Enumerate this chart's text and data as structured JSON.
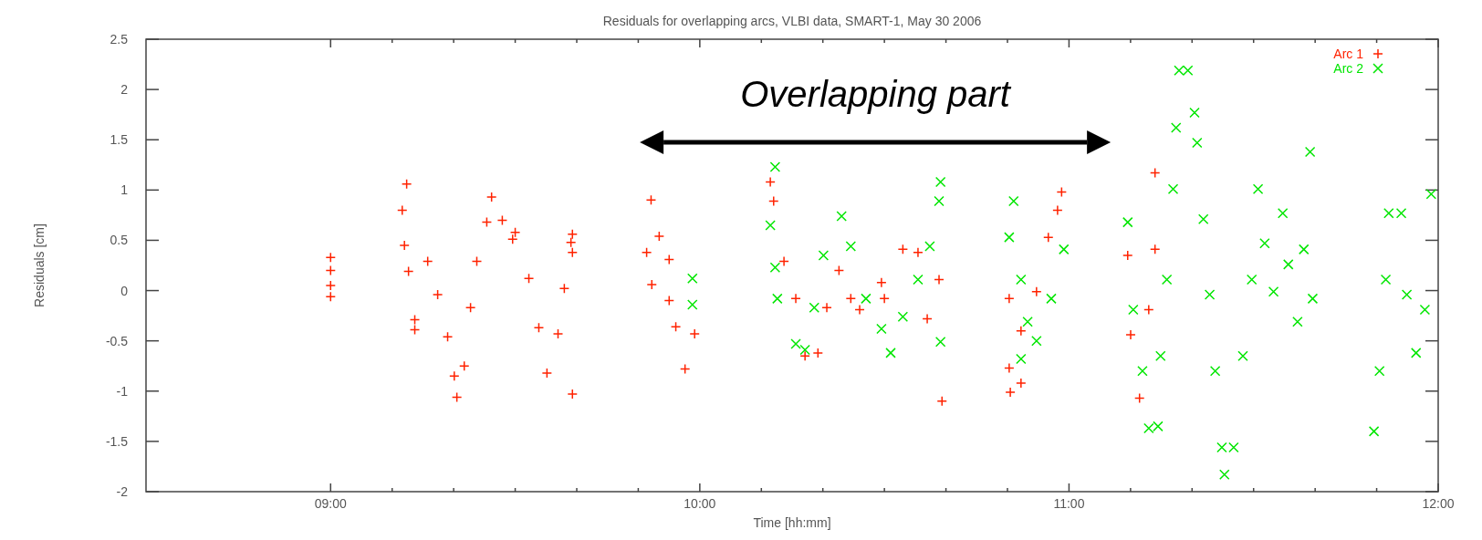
{
  "chart_data": {
    "type": "scatter",
    "title": "Residuals for overlapping arcs, VLBI data, SMART-1, May 30 2006",
    "xlabel": "Time [hh:mm]",
    "ylabel": "Residuals [cm]",
    "xlim": [
      8.5,
      12
    ],
    "ylim": [
      -2,
      2.5
    ],
    "xticks": [
      {
        "value": 9,
        "label": "09:00"
      },
      {
        "value": 9.1667,
        "label": null
      },
      {
        "value": 9.3333,
        "label": null
      },
      {
        "value": 9.5,
        "label": null
      },
      {
        "value": 9.6667,
        "label": null
      },
      {
        "value": 9.8333,
        "label": null
      },
      {
        "value": 10,
        "label": "10:00"
      },
      {
        "value": 10.1667,
        "label": null
      },
      {
        "value": 10.3333,
        "label": null
      },
      {
        "value": 10.5,
        "label": null
      },
      {
        "value": 10.6667,
        "label": null
      },
      {
        "value": 10.8333,
        "label": null
      },
      {
        "value": 11,
        "label": "11:00"
      },
      {
        "value": 11.1667,
        "label": null
      },
      {
        "value": 11.3333,
        "label": null
      },
      {
        "value": 11.5,
        "label": null
      },
      {
        "value": 11.6667,
        "label": null
      },
      {
        "value": 11.8333,
        "label": null
      },
      {
        "value": 12,
        "label": "12:00"
      }
    ],
    "yticks": [
      -2,
      -1.5,
      -1,
      -0.5,
      0,
      0.5,
      1,
      1.5,
      2,
      2.5
    ],
    "grid": false,
    "legend": "top right",
    "marker": "cross",
    "annotations": [
      "Overlapping part"
    ],
    "series": [
      {
        "name": "Arc 1",
        "color": "#ff2200",
        "x": [
          9.0,
          9.0,
          9.0,
          9.0,
          9.194,
          9.2,
          9.206,
          9.211,
          9.228,
          9.228,
          9.263,
          9.29,
          9.317,
          9.335,
          9.342,
          9.362,
          9.379,
          9.396,
          9.423,
          9.436,
          9.465,
          9.493,
          9.5,
          9.537,
          9.564,
          9.586,
          9.616,
          9.633,
          9.651,
          9.655,
          9.655,
          9.655,
          9.856,
          9.868,
          9.87,
          9.89,
          9.917,
          9.917,
          9.935,
          9.96,
          9.986,
          10.191,
          10.2,
          10.228,
          10.26,
          10.285,
          10.32,
          10.344,
          10.377,
          10.409,
          10.433,
          10.492,
          10.5,
          10.55,
          10.591,
          10.616,
          10.648,
          10.656,
          10.838,
          10.838,
          10.841,
          10.87,
          10.87,
          10.912,
          10.944,
          10.969,
          10.98,
          11.159,
          11.167,
          11.191,
          11.216,
          11.233,
          11.233
        ],
        "values": [
          0.33,
          0.2,
          0.05,
          -0.06,
          0.8,
          0.45,
          1.06,
          0.19,
          -0.29,
          -0.39,
          0.29,
          -0.04,
          -0.46,
          -0.85,
          -1.06,
          -0.75,
          -0.17,
          0.29,
          0.68,
          0.93,
          0.7,
          0.51,
          0.58,
          0.12,
          -0.37,
          -0.82,
          -0.43,
          0.02,
          0.48,
          0.38,
          0.56,
          -1.03,
          0.38,
          0.9,
          0.06,
          0.54,
          0.31,
          -0.1,
          -0.36,
          -0.78,
          -0.43,
          1.08,
          0.89,
          0.29,
          -0.08,
          -0.65,
          -0.62,
          -0.17,
          0.2,
          -0.08,
          -0.19,
          0.08,
          -0.08,
          0.41,
          0.38,
          -0.28,
          0.11,
          -1.1,
          -0.08,
          -0.77,
          -1.01,
          -0.92,
          -0.4,
          -0.01,
          0.53,
          0.8,
          0.98,
          0.35,
          -0.44,
          -1.07,
          -0.19,
          1.17,
          0.41
        ]
      },
      {
        "name": "Arc 2",
        "color": "#00e600",
        "x": [
          9.98,
          9.98,
          10.191,
          10.204,
          10.204,
          10.21,
          10.26,
          10.285,
          10.31,
          10.335,
          10.384,
          10.409,
          10.45,
          10.492,
          10.517,
          10.55,
          10.591,
          10.623,
          10.648,
          10.652,
          10.652,
          10.838,
          10.85,
          10.87,
          10.87,
          10.888,
          10.912,
          10.952,
          10.986,
          11.159,
          11.174,
          11.199,
          11.216,
          11.241,
          11.248,
          11.265,
          11.282,
          11.29,
          11.298,
          11.322,
          11.34,
          11.347,
          11.364,
          11.381,
          11.396,
          11.414,
          11.421,
          11.446,
          11.471,
          11.495,
          11.512,
          11.53,
          11.554,
          11.579,
          11.594,
          11.619,
          11.636,
          11.653,
          11.66,
          11.826,
          11.841,
          11.858,
          11.866,
          11.9,
          11.915,
          11.94,
          11.964,
          11.981
        ],
        "values": [
          0.12,
          -0.14,
          0.65,
          1.23,
          0.23,
          -0.08,
          -0.53,
          -0.59,
          -0.17,
          0.35,
          0.74,
          0.44,
          -0.08,
          -0.38,
          -0.62,
          -0.26,
          0.11,
          0.44,
          0.89,
          1.08,
          -0.51,
          0.53,
          0.89,
          0.11,
          -0.68,
          -0.31,
          -0.5,
          -0.08,
          0.41,
          0.68,
          -0.19,
          -0.8,
          -1.37,
          -1.35,
          -0.65,
          0.11,
          1.01,
          1.62,
          2.19,
          2.19,
          1.77,
          1.47,
          0.71,
          -0.04,
          -0.8,
          -1.56,
          -1.83,
          -1.56,
          -0.65,
          0.11,
          1.01,
          0.47,
          -0.01,
          0.77,
          0.26,
          -0.31,
          0.41,
          1.38,
          -0.08,
          -1.4,
          -0.8,
          0.11,
          0.77,
          0.77,
          -0.04,
          -0.62,
          -0.19,
          0.96
        ]
      }
    ]
  }
}
